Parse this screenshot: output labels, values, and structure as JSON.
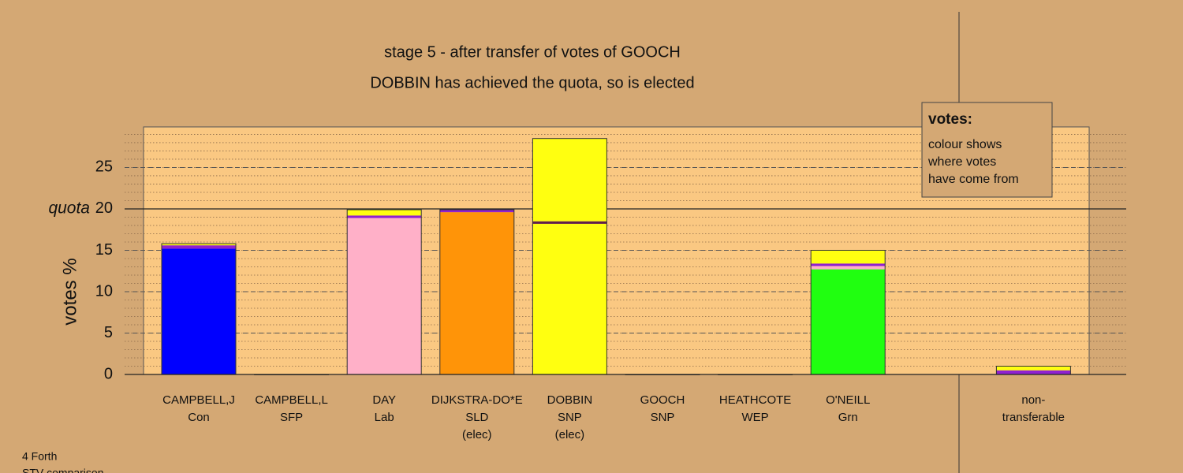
{
  "chart_data": {
    "type": "stacked_bar",
    "title": "stage 5 - after transfer of votes of GOOCH",
    "subtitle": "DOBBIN has achieved the quota, so is elected",
    "y_label": "votes %",
    "categories": [
      [
        "CAMPBELL,J",
        "Con"
      ],
      [
        "CAMPBELL,L",
        "SFP"
      ],
      [
        "DAY",
        "Lab"
      ],
      [
        "DIJKSTRA-DO*E",
        "SLD",
        "(elec)"
      ],
      [
        "DOBBIN",
        "SNP",
        "(elec)"
      ],
      [
        "GOOCH",
        "SNP"
      ],
      [
        "HEATHCOTE",
        "WEP"
      ],
      [
        "O'NEILL",
        "Grn"
      ],
      null,
      [
        "non-",
        "transferable"
      ]
    ],
    "series": [
      {
        "name": "Con",
        "color": "#0000ff",
        "values": [
          15.2,
          0,
          0,
          0,
          0,
          0,
          0,
          0,
          null,
          0
        ]
      },
      {
        "name": "SLD",
        "color": "#ff9408",
        "values": [
          0,
          0,
          0,
          19.6,
          0,
          0,
          0,
          0,
          null,
          0
        ]
      },
      {
        "name": "SNP",
        "color": "#ffff10",
        "values": [
          0,
          0,
          0,
          0,
          18.2,
          0,
          0,
          0,
          null,
          0
        ]
      },
      {
        "name": "Grn",
        "color": "#20ff10",
        "values": [
          0,
          0,
          0,
          0,
          0,
          0,
          0,
          12.7,
          null,
          0
        ]
      },
      {
        "name": "Lab",
        "color": "#ffb0c8",
        "values": [
          0,
          0,
          18.9,
          0,
          0,
          0,
          0,
          0.4,
          null,
          0
        ]
      },
      {
        "name": "SFP",
        "color": "#9020d0",
        "values": [
          0.4,
          0,
          0.3,
          0.3,
          0,
          0,
          0,
          0.3,
          null,
          0.5
        ]
      },
      {
        "name": "WEP",
        "color": "#602048",
        "values": [
          0,
          0,
          0,
          0,
          0.3,
          0,
          0,
          0,
          null,
          0
        ]
      },
      {
        "name": "GOOCH",
        "color": "#ffff10",
        "values": [
          0.2,
          0,
          0.7,
          0,
          10.0,
          0,
          0,
          1.6,
          null,
          0.5
        ]
      }
    ],
    "ylim": [
      0,
      29.9
    ],
    "yticks": [
      0,
      5,
      10,
      15,
      20,
      25
    ],
    "quota": 20,
    "quota_label": "quota",
    "grid": true,
    "minor_grid": true,
    "legend_box": {
      "heading": "votes:",
      "lines": [
        "colour shows",
        "where votes",
        "have come from"
      ]
    },
    "footer": [
      "4 Forth",
      "STV comparison"
    ]
  }
}
